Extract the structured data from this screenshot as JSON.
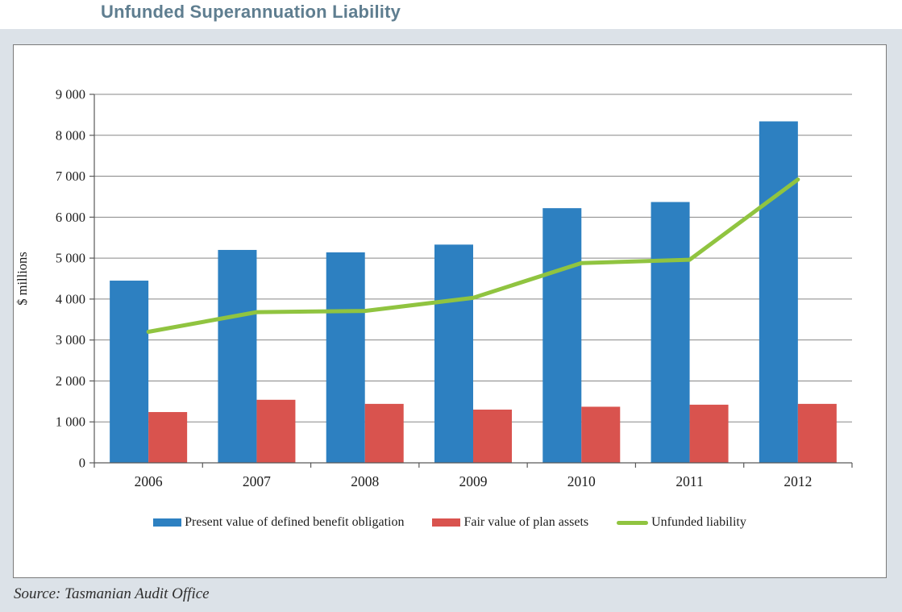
{
  "chart_data": {
    "type": "bar",
    "title": "Unfunded Superannuation Liability",
    "categories": [
      "2006",
      "2007",
      "2008",
      "2009",
      "2010",
      "2011",
      "2012"
    ],
    "series": [
      {
        "name": "Present value of defined benefit obligation",
        "kind": "bar",
        "color": "#2d80c1",
        "values": [
          4450,
          5200,
          5140,
          5330,
          6220,
          6370,
          8340
        ]
      },
      {
        "name": "Fair value of plan assets",
        "kind": "bar",
        "color": "#d9534e",
        "values": [
          1240,
          1540,
          1440,
          1300,
          1370,
          1420,
          1440
        ]
      },
      {
        "name": "Unfunded liability",
        "kind": "line",
        "color": "#90c440",
        "values": [
          3200,
          3680,
          3710,
          4030,
          4880,
          4960,
          6920
        ]
      }
    ],
    "xlabel": "",
    "ylabel": "$ millions",
    "ylim": [
      0,
      9000
    ],
    "ytick_step": 1000,
    "ytick_labels": [
      "0",
      "1 000",
      "2 000",
      "3 000",
      "4 000",
      "5 000",
      "6 000",
      "7 000",
      "8 000",
      "9 000"
    ],
    "grid": true,
    "legend_position": "bottom"
  },
  "footer": {
    "source": "Source: Tasmanian Audit Office"
  },
  "colors": {
    "title_text": "#5f7e90",
    "panel_background": "#dce2e8",
    "frame_border": "#7a7a7a",
    "gridline": "#878787",
    "axis": "#595959",
    "tick_text": "#1c1c1c"
  }
}
